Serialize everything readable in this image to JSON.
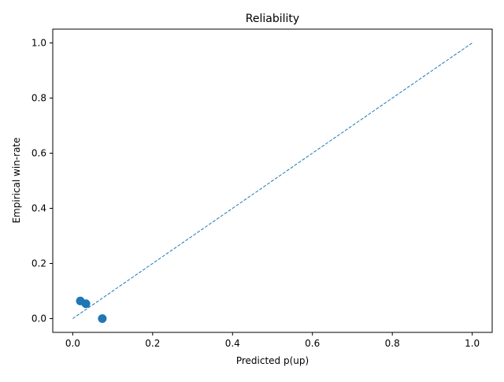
{
  "chart_data": {
    "type": "scatter",
    "title": "Reliability",
    "xlabel": "Predicted p(up)",
    "ylabel": "Empirical win-rate",
    "xlim": [
      -0.05,
      1.05
    ],
    "ylim": [
      -0.05,
      1.05
    ],
    "xticks": [
      0.0,
      0.2,
      0.4,
      0.6,
      0.8,
      1.0
    ],
    "xtick_labels": [
      "0.0",
      "0.2",
      "0.4",
      "0.6",
      "0.8",
      "1.0"
    ],
    "yticks": [
      0.0,
      0.2,
      0.4,
      0.6,
      0.8,
      1.0
    ],
    "ytick_labels": [
      "0.0",
      "0.2",
      "0.4",
      "0.6",
      "0.8",
      "1.0"
    ],
    "grid": false,
    "legend": null,
    "series": [
      {
        "kind": "points",
        "color": "#1f77b4",
        "points": [
          {
            "x": 0.019,
            "y": 0.064
          },
          {
            "x": 0.033,
            "y": 0.054
          },
          {
            "x": 0.074,
            "y": 0.0
          }
        ]
      },
      {
        "kind": "reference-line",
        "style": "dashed",
        "color": "#1f77b4",
        "points": [
          {
            "x": 0.0,
            "y": 0.0
          },
          {
            "x": 1.0,
            "y": 1.0
          }
        ]
      }
    ]
  }
}
